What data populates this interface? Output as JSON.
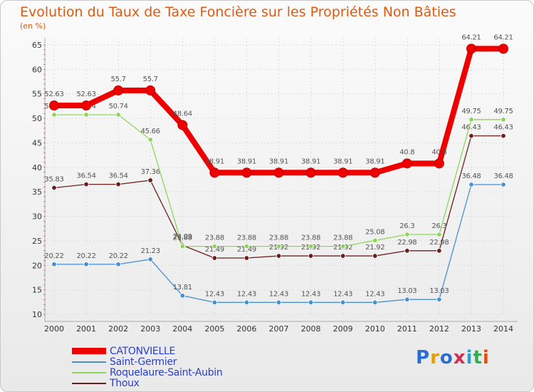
{
  "chart_data": {
    "type": "line",
    "title": "Evolution du Taux de Taxe Foncière sur les Propriétés Non Bâties",
    "ylabel": "(en %)",
    "x": [
      "2000",
      "2001",
      "2002",
      "2003",
      "2004",
      "2005",
      "2006",
      "2007",
      "2008",
      "2009",
      "2010",
      "2011",
      "2012",
      "2013",
      "2014"
    ],
    "ylim": [
      10,
      65
    ],
    "yticks": [
      10,
      15,
      20,
      25,
      30,
      35,
      40,
      45,
      50,
      55,
      60,
      65
    ],
    "series": [
      {
        "name": "Thoux",
        "color": "#6b1f1f",
        "values": [
          35.83,
          36.54,
          36.54,
          37.36,
          24.09,
          21.49,
          21.49,
          21.92,
          21.92,
          21.92,
          21.92,
          22.98,
          22.98,
          46.43,
          46.43
        ],
        "labels": [
          "35.83",
          "36.54",
          "36.54",
          "37.36",
          "24.09",
          "21.49",
          "21.49",
          "21.92",
          "21.92",
          "21.92",
          "21.92",
          "22.98",
          "22.98",
          "46.43",
          "46.43"
        ]
      },
      {
        "name": "Roquelaure-Saint-Aubin",
        "color": "#8ed65a",
        "values": [
          50.74,
          50.74,
          50.74,
          45.66,
          23.88,
          23.88,
          23.88,
          23.88,
          23.88,
          23.88,
          25.08,
          26.3,
          26.3,
          49.75,
          49.75
        ],
        "labels": [
          "50.74",
          "50.74",
          "50.74",
          "45.66",
          "23.88",
          "23.88",
          "23.88",
          "23.88",
          "23.88",
          "23.88",
          "25.08",
          "26.3",
          "26.3",
          "49.75",
          "49.75"
        ]
      },
      {
        "name": "Saint-Germier",
        "color": "#4a8fd0",
        "values": [
          20.22,
          20.22,
          20.22,
          21.23,
          13.81,
          12.43,
          12.43,
          12.43,
          12.43,
          12.43,
          12.43,
          13.03,
          13.03,
          36.48,
          36.48
        ],
        "labels": [
          "20.22",
          "20.22",
          "20.22",
          "21.23",
          "13.81",
          "12.43",
          "12.43",
          "12.43",
          "12.43",
          "12.43",
          "12.43",
          "13.03",
          "13.03",
          "36.48",
          "36.48"
        ]
      },
      {
        "name": "CATONVIELLE",
        "color": "#ee0000",
        "values": [
          52.63,
          52.63,
          55.7,
          55.7,
          48.64,
          38.91,
          38.91,
          38.91,
          38.91,
          38.91,
          38.91,
          40.8,
          40.8,
          64.21,
          64.21
        ],
        "labels": [
          "52.63",
          "52.63",
          "55.7",
          "55.7",
          "48.64",
          "38.91",
          "38.91",
          "38.91",
          "38.91",
          "38.91",
          "38.91",
          "40.8",
          "40.8",
          "64.21",
          "64.21"
        ]
      }
    ],
    "legend": [
      "CATONVIELLE",
      "Saint-Germier",
      "Roquelaure-Saint-Aubin",
      "Thoux"
    ]
  },
  "legend_items": [
    {
      "label": "CATONVIELLE",
      "color": "#ee0000"
    },
    {
      "label": "Saint-Germier",
      "color": "#4a8fd0"
    },
    {
      "label": "Roquelaure-Saint-Aubin",
      "color": "#8ed65a"
    },
    {
      "label": "Thoux",
      "color": "#6b1f1f"
    }
  ],
  "logo": {
    "text": "Proxiti",
    "colors": [
      "#2a6fd0",
      "#e0a010",
      "#2a6fd0",
      "#d03050",
      "#2a9fd0",
      "#30b050",
      "#e05010"
    ]
  }
}
